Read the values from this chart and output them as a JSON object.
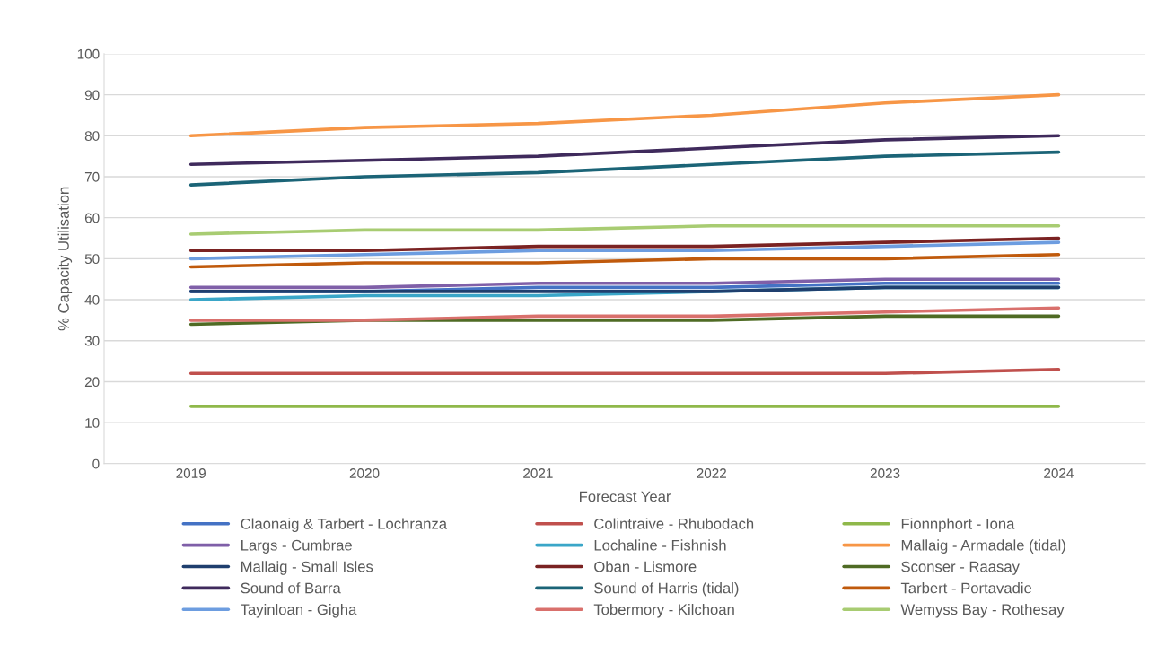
{
  "chart_data": {
    "type": "line",
    "xlabel": "Forecast Year",
    "ylabel": "% Capacity Utilisation",
    "categories": [
      "2019",
      "2020",
      "2021",
      "2022",
      "2023",
      "2024"
    ],
    "ylim": [
      0,
      100
    ],
    "yticks": [
      0,
      10,
      20,
      30,
      40,
      50,
      60,
      70,
      80,
      90,
      100
    ],
    "grid": "y",
    "legend": "bottom",
    "marker": "none",
    "series": [
      {
        "name": "Claonaig & Tarbert - Lochranza",
        "color": "#4472c4",
        "values": [
          42,
          42,
          43,
          43,
          44,
          44
        ]
      },
      {
        "name": "Colintraive - Rhubodach",
        "color": "#c0504d",
        "values": [
          22,
          22,
          22,
          22,
          22,
          23
        ]
      },
      {
        "name": "Fionnphort - Iona",
        "color": "#8fb84a",
        "values": [
          14,
          14,
          14,
          14,
          14,
          14
        ]
      },
      {
        "name": "Largs - Cumbrae",
        "color": "#7f5fa8",
        "values": [
          43,
          43,
          44,
          44,
          45,
          45
        ]
      },
      {
        "name": "Lochaline - Fishnish",
        "color": "#3aa6c8",
        "values": [
          40,
          41,
          41,
          42,
          43,
          43
        ]
      },
      {
        "name": "Mallaig - Armadale (tidal)",
        "color": "#f79646",
        "values": [
          80,
          82,
          83,
          85,
          88,
          90
        ]
      },
      {
        "name": "Mallaig - Small Isles",
        "color": "#1f3f6e",
        "values": [
          42,
          42,
          42,
          42,
          43,
          43
        ]
      },
      {
        "name": "Oban - Lismore",
        "color": "#7a2222",
        "values": [
          52,
          52,
          53,
          53,
          54,
          55
        ]
      },
      {
        "name": "Sconser - Raasay",
        "color": "#4f6b24",
        "values": [
          34,
          35,
          35,
          35,
          36,
          36
        ]
      },
      {
        "name": "Sound of Barra",
        "color": "#3f2a5c",
        "values": [
          73,
          74,
          75,
          77,
          79,
          80
        ]
      },
      {
        "name": "Sound of Harris (tidal)",
        "color": "#1b6477",
        "values": [
          68,
          70,
          71,
          73,
          75,
          76
        ]
      },
      {
        "name": "Tarbert - Portavadie",
        "color": "#c05a0c",
        "values": [
          48,
          49,
          49,
          50,
          50,
          51
        ]
      },
      {
        "name": "Tayinloan - Gigha",
        "color": "#6d9de0",
        "values": [
          50,
          51,
          52,
          52,
          53,
          54
        ]
      },
      {
        "name": "Tobermory - Kilchoan",
        "color": "#d9706c",
        "values": [
          35,
          35,
          36,
          36,
          37,
          38
        ]
      },
      {
        "name": "Wemyss Bay - Rothesay",
        "color": "#a8cc72",
        "values": [
          56,
          57,
          57,
          58,
          58,
          58
        ]
      }
    ]
  }
}
